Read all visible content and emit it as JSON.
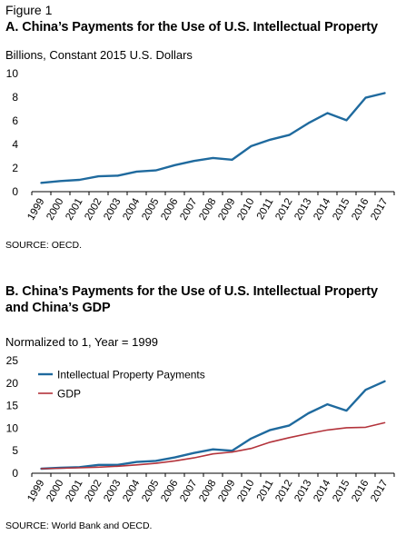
{
  "figure_label": "Figure 1",
  "panel_a": {
    "title": "A. China’s Payments for the Use of U.S. Intellectual Property",
    "subtitle": "Billions, Constant 2015 U.S. Dollars",
    "source": "SOURCE: OECD."
  },
  "panel_b": {
    "title_line1": "B. China’s Payments for the Use of U.S. Intellectual Property",
    "title_line2": "and China’s GDP",
    "subtitle": "Normalized to 1, Year = 1999",
    "source": "SOURCE: World Bank and OECD."
  },
  "chart_data": [
    {
      "type": "line",
      "title": "A. China’s Payments for the Use of U.S. Intellectual Property",
      "ylabel": "Billions, Constant 2015 U.S. Dollars",
      "x": [
        "1999",
        "2000",
        "2001",
        "2002",
        "2003",
        "2004",
        "2005",
        "2006",
        "2007",
        "2008",
        "2009",
        "2010",
        "2011",
        "2012",
        "2013",
        "2014",
        "2015",
        "2016",
        "2017"
      ],
      "ylim": [
        0,
        10
      ],
      "yticks": [
        0,
        2,
        4,
        6,
        8,
        10
      ],
      "grid": false,
      "series": [
        {
          "values": [
            0.75,
            0.9,
            1.0,
            1.3,
            1.35,
            1.7,
            1.8,
            2.25,
            2.6,
            2.85,
            2.7,
            3.85,
            4.4,
            4.8,
            5.8,
            6.65,
            6.05,
            7.95,
            8.35
          ],
          "color": "#1f6a9e"
        }
      ]
    },
    {
      "type": "line",
      "title": "B. China’s Payments for the Use of U.S. Intellectual Property and China’s GDP",
      "ylabel": "Normalized to 1, Year = 1999",
      "x": [
        "1999",
        "2000",
        "2001",
        "2002",
        "2003",
        "2004",
        "2005",
        "2006",
        "2007",
        "2008",
        "2009",
        "2010",
        "2011",
        "2012",
        "2013",
        "2014",
        "2015",
        "2016",
        "2017"
      ],
      "ylim": [
        0,
        25
      ],
      "yticks": [
        0,
        5,
        10,
        15,
        20,
        25
      ],
      "grid": false,
      "legend_position": "top-left",
      "series": [
        {
          "name": "Intellectual Property Payments",
          "values": [
            1.0,
            1.2,
            1.35,
            1.85,
            1.85,
            2.5,
            2.75,
            3.5,
            4.5,
            5.3,
            5.0,
            7.7,
            9.6,
            10.6,
            13.3,
            15.3,
            13.9,
            18.5,
            20.4
          ],
          "color": "#1f6a9e"
        },
        {
          "name": "GDP",
          "values": [
            1.0,
            1.1,
            1.2,
            1.35,
            1.55,
            1.85,
            2.2,
            2.75,
            3.4,
            4.3,
            4.7,
            5.5,
            6.9,
            7.9,
            8.8,
            9.6,
            10.1,
            10.2,
            11.2
          ],
          "color": "#b3333b"
        }
      ]
    }
  ]
}
